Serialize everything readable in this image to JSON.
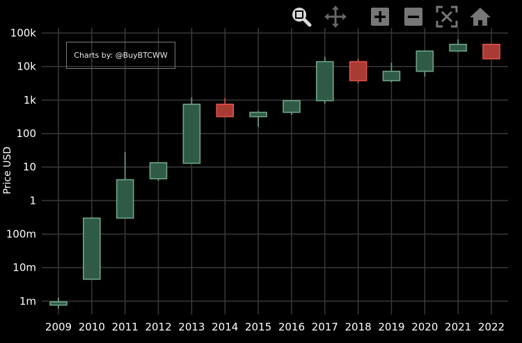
{
  "toolbar": {
    "items": [
      {
        "name": "zoom-icon",
        "title": "Zoom"
      },
      {
        "name": "pan-icon",
        "title": "Pan"
      },
      {
        "name": "zoom-in-icon",
        "title": "Zoom in"
      },
      {
        "name": "zoom-out-icon",
        "title": "Zoom out"
      },
      {
        "name": "autoscale-icon",
        "title": "Autoscale"
      },
      {
        "name": "home-icon",
        "title": "Reset axes"
      }
    ]
  },
  "annotation": {
    "text": "Charts by: @BuyBTCWW"
  },
  "colors": {
    "background": "#000000",
    "grid": "#3a3a3a",
    "increasing_fill": "#2f5a45",
    "increasing_line": "#6fa58a",
    "decreasing_fill": "#a83b34",
    "decreasing_line": "#e0534a",
    "text": "#ffffff"
  },
  "chart_data": {
    "type": "candlestick",
    "title": "",
    "xlabel": "",
    "ylabel": "Price USD",
    "yscale": "log",
    "ylim": [
      0.0004,
      150000
    ],
    "grid": true,
    "yticks": [
      {
        "value": 0.001,
        "label": "1m"
      },
      {
        "value": 0.01,
        "label": "10m"
      },
      {
        "value": 0.1,
        "label": "100m"
      },
      {
        "value": 1,
        "label": "1"
      },
      {
        "value": 10,
        "label": "10"
      },
      {
        "value": 100,
        "label": "100"
      },
      {
        "value": 1000,
        "label": "1k"
      },
      {
        "value": 10000,
        "label": "10k"
      },
      {
        "value": 100000,
        "label": "100k"
      }
    ],
    "categories": [
      "2009",
      "2010",
      "2011",
      "2012",
      "2013",
      "2014",
      "2015",
      "2016",
      "2017",
      "2018",
      "2019",
      "2020",
      "2021",
      "2022"
    ],
    "candles": [
      {
        "x": "2009",
        "open": 0.00076,
        "close": 0.00095,
        "high": 0.0013,
        "low": 0.0006
      },
      {
        "x": "2010",
        "open": 0.0045,
        "close": 0.3,
        "high": 0.32,
        "low": 0.0045
      },
      {
        "x": "2011",
        "open": 0.3,
        "close": 4.2,
        "high": 28,
        "low": 0.3
      },
      {
        "x": "2012",
        "open": 4.5,
        "close": 13.5,
        "high": 14,
        "low": 3.9
      },
      {
        "x": "2013",
        "open": 13,
        "close": 750,
        "high": 1200,
        "low": 13
      },
      {
        "x": "2014",
        "open": 750,
        "close": 320,
        "high": 1150,
        "low": 320
      },
      {
        "x": "2015",
        "open": 320,
        "close": 430,
        "high": 470,
        "low": 160
      },
      {
        "x": "2016",
        "open": 430,
        "close": 960,
        "high": 980,
        "low": 360
      },
      {
        "x": "2017",
        "open": 960,
        "close": 14000,
        "high": 19500,
        "low": 780
      },
      {
        "x": "2018",
        "open": 14000,
        "close": 3800,
        "high": 17200,
        "low": 3200
      },
      {
        "x": "2019",
        "open": 3800,
        "close": 7200,
        "high": 13000,
        "low": 3400
      },
      {
        "x": "2020",
        "open": 7200,
        "close": 29000,
        "high": 29500,
        "low": 5000
      },
      {
        "x": "2021",
        "open": 29000,
        "close": 46000,
        "high": 65000,
        "low": 28000
      },
      {
        "x": "2022",
        "open": 46000,
        "close": 17000,
        "high": 47000,
        "low": 16800
      }
    ]
  }
}
